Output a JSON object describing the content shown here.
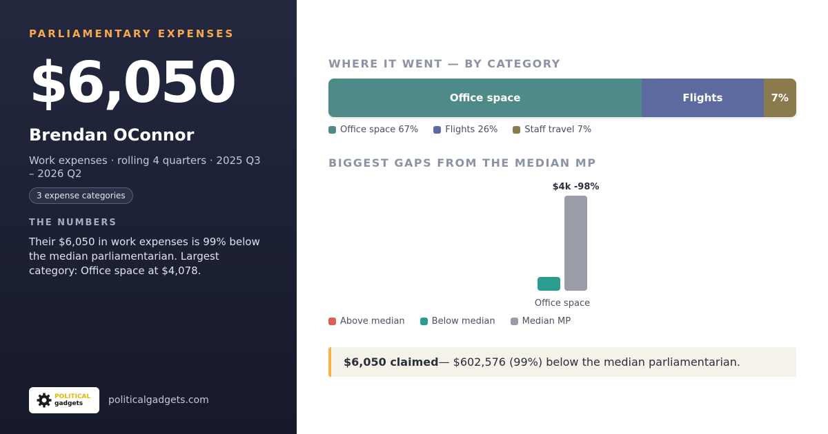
{
  "left": {
    "kicker": "PARLIAMENTARY EXPENSES",
    "amount": "$6,050",
    "name": "Brendan OConnor",
    "subtitle": "Work expenses · rolling 4 quarters · 2025 Q3 – 2026 Q2",
    "pill": "3 expense categories",
    "numbers_heading": "THE NUMBERS",
    "numbers_body": "Their $6,050 in work expenses is 99% below the median parliamentarian. Largest category: Office space at $4,078.",
    "logo_top": "POLITICAL",
    "logo_bottom": "gadgets",
    "logo_icon": "gear-icon",
    "site": "politicalgadgets.com"
  },
  "right": {
    "category_title": "WHERE IT WENT — BY CATEGORY",
    "gaps_title": "BIGGEST GAPS FROM THE MEDIAN MP",
    "callout_bold": "$6,050 claimed",
    "callout_rest": " — $602,576 (99%) below the median parliamentarian."
  },
  "colors": {
    "accent": "#f5a94a",
    "office_space": "#4e8a87",
    "flights": "#5d6aa0",
    "staff_travel": "#8c7a4f",
    "above_median": "#e05c54",
    "below_median": "#2a9d8f",
    "median_mp": "#9a9ca8"
  },
  "chart_data": [
    {
      "type": "bar",
      "stacked": true,
      "title": "WHERE IT WENT — BY CATEGORY",
      "series": [
        {
          "name": "Office space",
          "value": 67,
          "label": "Office space",
          "legend": "Office space 67%",
          "color": "#4e8a87"
        },
        {
          "name": "Flights",
          "value": 26,
          "label": "Flights",
          "legend": "Flights 26%",
          "color": "#5d6aa0"
        },
        {
          "name": "Staff travel",
          "value": 7,
          "label": "7%",
          "legend": "Staff travel 7%",
          "color": "#8c7a4f"
        }
      ]
    },
    {
      "type": "bar",
      "title": "BIGGEST GAPS FROM THE MEDIAN MP",
      "categories": [
        "Office space"
      ],
      "series": [
        {
          "name": "Below median",
          "values": [
            4078
          ],
          "color": "#2a9d8f"
        },
        {
          "name": "Median MP",
          "values": [
            170000
          ],
          "color": "#9a9ca8"
        }
      ],
      "data_labels": [
        "$4k -98%"
      ],
      "legend": [
        {
          "name": "Above median",
          "color": "#e05c54"
        },
        {
          "name": "Below median",
          "color": "#2a9d8f"
        },
        {
          "name": "Median MP",
          "color": "#9a9ca8"
        }
      ]
    }
  ]
}
